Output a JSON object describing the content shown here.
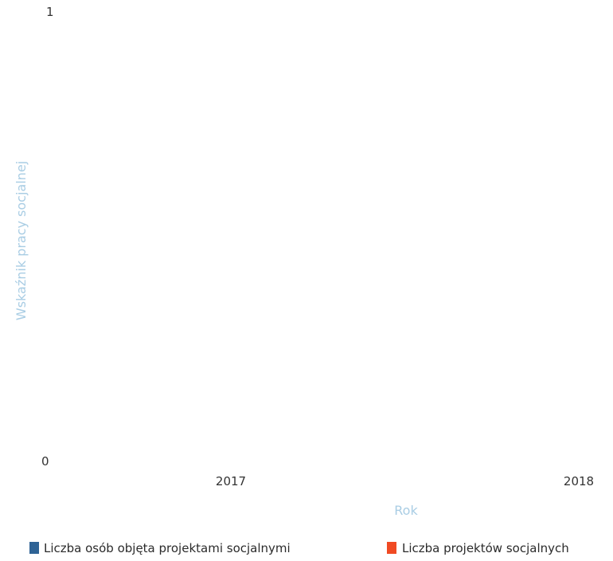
{
  "chart_data": {
    "type": "bar",
    "categories": [
      "2017",
      "2018"
    ],
    "series": [
      {
        "name": "Liczba osób objęta projektami socjalnymi",
        "values": [
          0,
          0
        ],
        "color": "#2f6395"
      },
      {
        "name": "Liczba projektów socjalnych",
        "values": [
          0,
          0
        ],
        "color": "#f04a23"
      }
    ],
    "xlabel": "Rok",
    "ylabel": "Wskaźnik pracy socjalnej",
    "ylim": [
      0,
      1
    ],
    "yticks": [
      "0",
      "1"
    ],
    "grid": false,
    "legend_position": "bottom"
  }
}
